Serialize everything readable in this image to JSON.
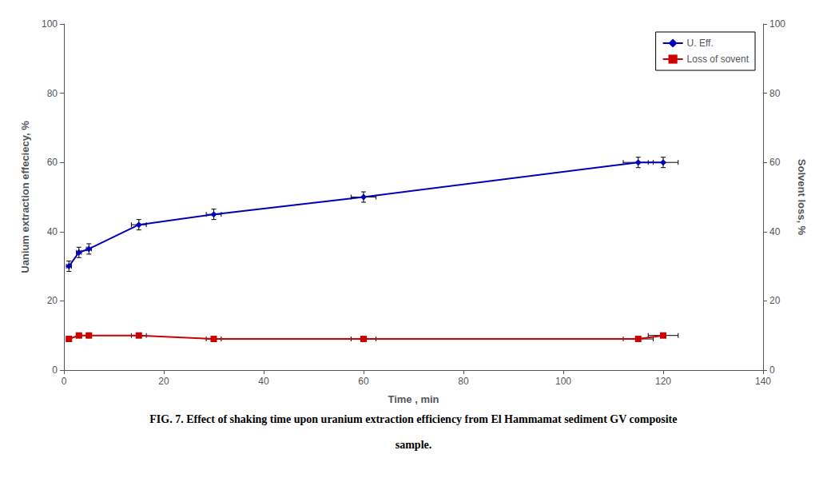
{
  "chart_data": {
    "type": "line",
    "xlabel": "Time , min",
    "ylabel": "Uanium extraction effeciecy, %",
    "y2label": "Solvent loss, %",
    "caption": [
      "FIG. 7. Effect of shaking time upon uranium extraction efficiency from El Hammamat sediment GV composite",
      "sample."
    ],
    "x": [
      1,
      3,
      5,
      15,
      30,
      60,
      115,
      120
    ],
    "xlim": [
      0,
      140
    ],
    "xticks": [
      0,
      20,
      40,
      60,
      80,
      100,
      120,
      140
    ],
    "ylim": [
      0,
      100
    ],
    "yticks": [
      0,
      20,
      40,
      60,
      80,
      100
    ],
    "y2lim": [
      0,
      100
    ],
    "y2ticks": [
      0,
      20,
      40,
      60,
      80,
      100
    ],
    "grid": false,
    "legend": "upper right",
    "series": [
      {
        "name": "U. Eff.",
        "color": "#0000bb",
        "marker": "diamond",
        "values": [
          30,
          34,
          35,
          42,
          45,
          50,
          60,
          60
        ],
        "xerr": [
          0.5,
          0.5,
          0.5,
          1.5,
          1.5,
          2.5,
          3,
          3
        ],
        "yerr": [
          1.5,
          1.5,
          1.5,
          1.5,
          1.5,
          1.5,
          1.5,
          1.5
        ]
      },
      {
        "name": "Loss of sovent",
        "axis": "y2",
        "color": "#cc0000",
        "marker": "square",
        "values": [
          9,
          10,
          10,
          10,
          9,
          9,
          9,
          10
        ],
        "xerr": [
          0.5,
          0.5,
          0.5,
          1.5,
          1.5,
          2.5,
          3,
          3
        ],
        "yerr": [
          0.6,
          0.6,
          0.6,
          0.6,
          0.6,
          0.6,
          0.6,
          0.6
        ]
      }
    ]
  }
}
